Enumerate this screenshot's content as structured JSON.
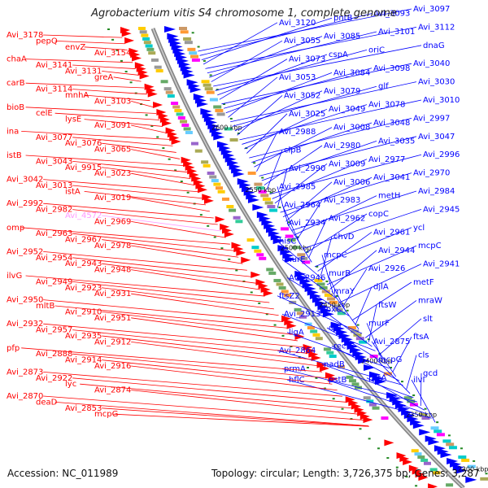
{
  "title": "Agrobacterium vitis S4 chromosome 1, complete genome",
  "accession": "Accession: NC_011989",
  "summary": "Topology: circular; Length: 3,726,375 bp; Genes: 3,287",
  "colors": {
    "minus": "#ff0000",
    "plus": "#0000ff",
    "pseudo": "#ff99ff",
    "backbone": "#888888",
    "tick": "#228822"
  },
  "ruler": [
    "2600 kbp",
    "2550 kbp",
    "2500 kbp",
    "2450 kbp",
    "2400 kbp",
    "2350 kbp",
    "2300 kbp"
  ],
  "labels_right": [
    "Avi_3097",
    "Avi_3093",
    "pntB",
    "Avi_3120",
    "Avi_3112",
    "Avi_3101",
    "Avi_3085",
    "Avi_3055",
    "dnaG",
    "oriC",
    "cspA",
    "Avi_3073",
    "Avi_3040",
    "Avi_3098",
    "Avi_3084",
    "Avi_3053",
    "Avi_3030",
    "glf",
    "Avi_3079",
    "Avi_3052",
    "Avi_3010",
    "Avi_3078",
    "Avi_3049",
    "Avi_3025",
    "Avi_2997",
    "Avi_3048",
    "Avi_3008",
    "Avi_2988",
    "Avi_3047",
    "Avi_3035",
    "Avi_2980",
    "clpB",
    "Avi_2996",
    "Avi_2977",
    "Avi_3009",
    "Avi_2990",
    "Avi_2970",
    "Avi_3041",
    "Avi_3006",
    "Avi_2985",
    "Avi_2984",
    "metH",
    "Avi_2983",
    "Avi_2964",
    "Avi_2945",
    "copC",
    "Avi_2962",
    "Avi_2934",
    "ycl",
    "Avi_2961",
    "chvD",
    "hisC",
    "mcpC",
    "Avi_2944",
    "mcpC",
    "murE",
    "Avi_2941",
    "Avi_2926",
    "murB",
    "Avi_2946",
    "metF",
    "djlA",
    "mraY",
    "ftsZ2",
    "mraW",
    "ftsW",
    "lpxC",
    "Avi_2913",
    "slt",
    "murF",
    "ddl",
    "ligA",
    "ftsA",
    "Avi_2875",
    "recN",
    "Avi_2864",
    "cls",
    "mcpG",
    "nadB",
    "prmA",
    "gcd",
    "pstA",
    "pstB",
    "hflC",
    "ilvI"
  ],
  "labels_left": [
    "Avi_3178",
    "pepQ",
    "envZ",
    "Avi_3154",
    "chaA",
    "Avi_3141",
    "Avi_3131",
    "greA",
    "carB",
    "Avi_3114",
    "mnhA",
    "Avi_3103",
    "bioB",
    "celE",
    "lysE",
    "Avi_3091",
    "ina",
    "Avi_3077",
    "Avi_3076",
    "Avi_3065",
    "istB",
    "Avi_3043",
    "Avi_9915",
    "Avi_3023",
    "Avi_3042",
    "Avi_3013",
    "istA",
    "Avi_3019",
    "Avi_2992",
    "Avi_2982",
    "Avi_4572",
    "Avi_2969",
    "omp",
    "Avi_2963",
    "Avi_2967",
    "Avi_2978",
    "Avi_2952",
    "Avi_2954",
    "Avi_2943",
    "Avi_2948",
    "ilvG",
    "Avi_2949",
    "Avi_2923",
    "Avi_2931",
    "Avi_2950",
    "mltB",
    "Avi_2910",
    "Avi_2951",
    "Avi_2932",
    "Avi_2957",
    "Avi_2935",
    "Avi_2912",
    "pfp",
    "Avi_2888",
    "Avi_2914",
    "Avi_2916",
    "Avi_2873",
    "Avi_2922",
    "lyc",
    "Avi_2874",
    "Avi_2870",
    "deaD",
    "Avi_2853",
    "mcpG"
  ],
  "pseudo_label": "Avi_4572"
}
